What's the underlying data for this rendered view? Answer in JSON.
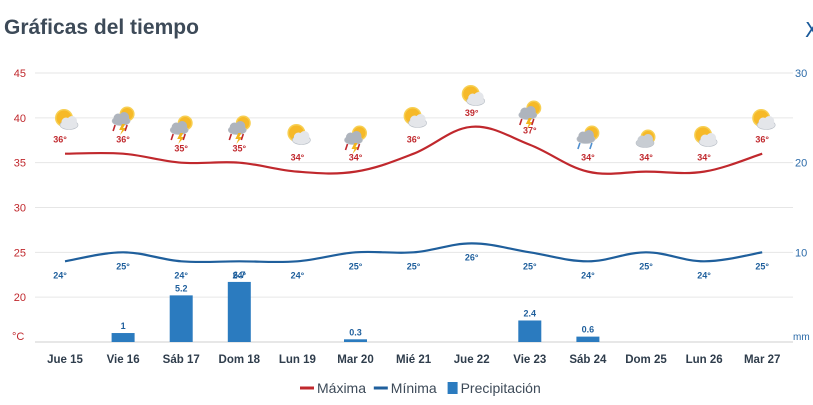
{
  "header": {
    "title": "Gráficas del tiempo",
    "close_glyph": "X"
  },
  "chart_data": {
    "type": "line",
    "title": "Gráficas del tiempo",
    "categories": [
      "Jue 15",
      "Vie 16",
      "Sáb 17",
      "Dom 18",
      "Lun 19",
      "Mar 20",
      "Mié 21",
      "Jue 22",
      "Vie 23",
      "Sáb 24",
      "Dom 25",
      "Lun 26",
      "Mar 27"
    ],
    "left_axis": {
      "unit": "°C",
      "ticks": [
        20,
        25,
        30,
        35,
        40,
        45
      ],
      "ylim": [
        15,
        45
      ]
    },
    "right_axis": {
      "unit": "mm",
      "ticks": [
        10,
        20,
        30
      ],
      "ylim": [
        0,
        30
      ]
    },
    "grid": true,
    "legend_position": "bottom",
    "series": [
      {
        "name": "Máxima",
        "kind": "line",
        "axis": "left",
        "color": "#c0282d",
        "values": [
          36,
          36,
          35,
          35,
          34,
          34,
          36,
          39,
          37,
          34,
          34,
          34,
          36
        ],
        "labels": [
          "36°",
          "36°",
          "35°",
          "35°",
          "34°",
          "34°",
          "36°",
          "39°",
          "37°",
          "34°",
          "34°",
          "34°",
          "36°"
        ]
      },
      {
        "name": "Mínima",
        "kind": "line",
        "axis": "left",
        "color": "#1f5f9c",
        "values": [
          24,
          25,
          24,
          24,
          24,
          25,
          25,
          26,
          25,
          24,
          25,
          24,
          25
        ],
        "labels": [
          "24°",
          "25°",
          "24°",
          "24°",
          "24°",
          "25°",
          "25°",
          "26°",
          "25°",
          "24°",
          "25°",
          "24°",
          "25°"
        ]
      },
      {
        "name": "Precipitación",
        "kind": "bar",
        "axis": "right",
        "color": "#2b7bbf",
        "values": [
          0,
          1,
          5.2,
          6.7,
          0,
          0.3,
          0,
          0,
          2.4,
          0.6,
          0,
          0,
          0
        ],
        "labels": [
          "",
          "1",
          "5.2",
          "6.7",
          "",
          "0.3",
          "",
          "",
          "2.4",
          "0.6",
          "",
          "",
          ""
        ]
      }
    ],
    "weather_icons": [
      "sun-cloud-icon",
      "storm-icon",
      "storm-icon",
      "storm-icon",
      "sun-cloud-icon",
      "storm-icon",
      "sun-cloud-icon",
      "sun-cloud-icon",
      "storm-icon",
      "rain-icon",
      "cloudy-icon",
      "sun-cloud-icon",
      "sun-cloud-icon"
    ]
  }
}
